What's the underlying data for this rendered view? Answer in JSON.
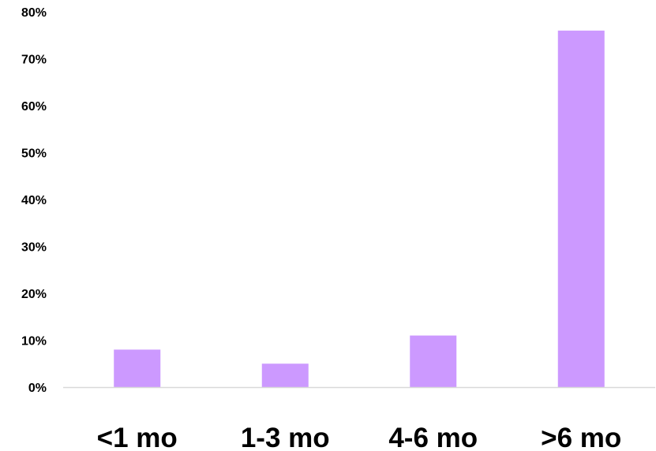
{
  "chart_data": {
    "type": "bar",
    "categories": [
      "<1 mo",
      "1-3 mo",
      "4-6 mo",
      ">6 mo"
    ],
    "values": [
      8,
      5,
      11,
      76
    ],
    "y_tick_labels": [
      "0%",
      "10%",
      "20%",
      "30%",
      "40%",
      "50%",
      "60%",
      "70%",
      "80%"
    ],
    "ylim": [
      0,
      80
    ],
    "y_unit": "%",
    "grid": false,
    "legend": "none",
    "bar_color": "#cc99ff",
    "axis_color": "#d9d9d9"
  }
}
